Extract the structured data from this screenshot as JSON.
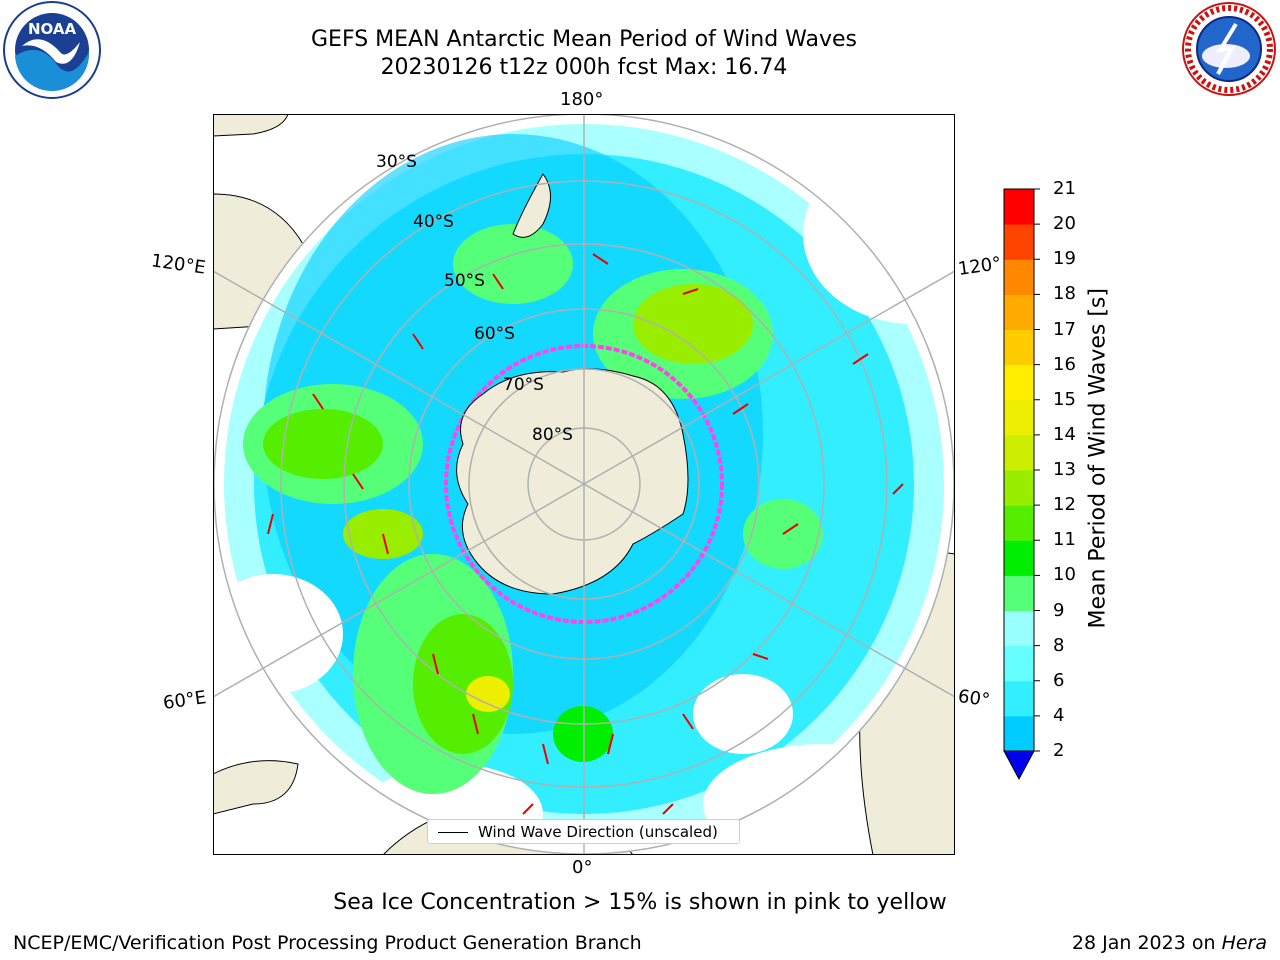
{
  "title_line1": "GEFS MEAN Antarctic Mean Period of Wind Waves",
  "title_line2": "20230126 t12z 000h fcst   Max: 16.74",
  "longitude_labels": {
    "top": "180°",
    "bottom": "0°",
    "upper_left": "120°E",
    "upper_right": "120°",
    "lower_left": "60°E",
    "lower_right": "60°"
  },
  "latitude_labels": [
    "30°S",
    "40°S",
    "50°S",
    "60°S",
    "70°S",
    "80°S"
  ],
  "legend_label": "Wind Wave Direction (unscaled)",
  "colorbar": {
    "title": "Mean Period of Wind Waves [s]",
    "ticks": [
      "2",
      "4",
      "6",
      "8",
      "9",
      "10",
      "11",
      "12",
      "13",
      "14",
      "15",
      "16",
      "17",
      "18",
      "19",
      "20",
      "21"
    ],
    "colors": [
      "#0055ff",
      "#00ccff",
      "#33eeff",
      "#66ffff",
      "#99ffff",
      "#55ff77",
      "#00ee00",
      "#55ee00",
      "#99ee00",
      "#ccee00",
      "#eeee00",
      "#ffee00",
      "#ffcc00",
      "#ffaa00",
      "#ff8800",
      "#ff4400",
      "#ff0000"
    ],
    "extend_color": "#0000ee"
  },
  "caption": "Sea Ice Concentration > 15% is shown in pink to yellow",
  "footer_left": "NCEP/EMC/Verification Post Processing Product Generation Branch",
  "footer_right_date": "28 Jan 2023 on ",
  "footer_right_host": "Hera",
  "logos": {
    "left": "noaa-logo",
    "right": "nws-logo",
    "left_text": "NOAA",
    "right_text": "NATIONAL WEATHER SERVICE"
  },
  "colors": {
    "land": "#efedd9",
    "ice_edge": "#ff44ee",
    "arrows": "#ee0000",
    "grid": "#b0b0b0"
  }
}
